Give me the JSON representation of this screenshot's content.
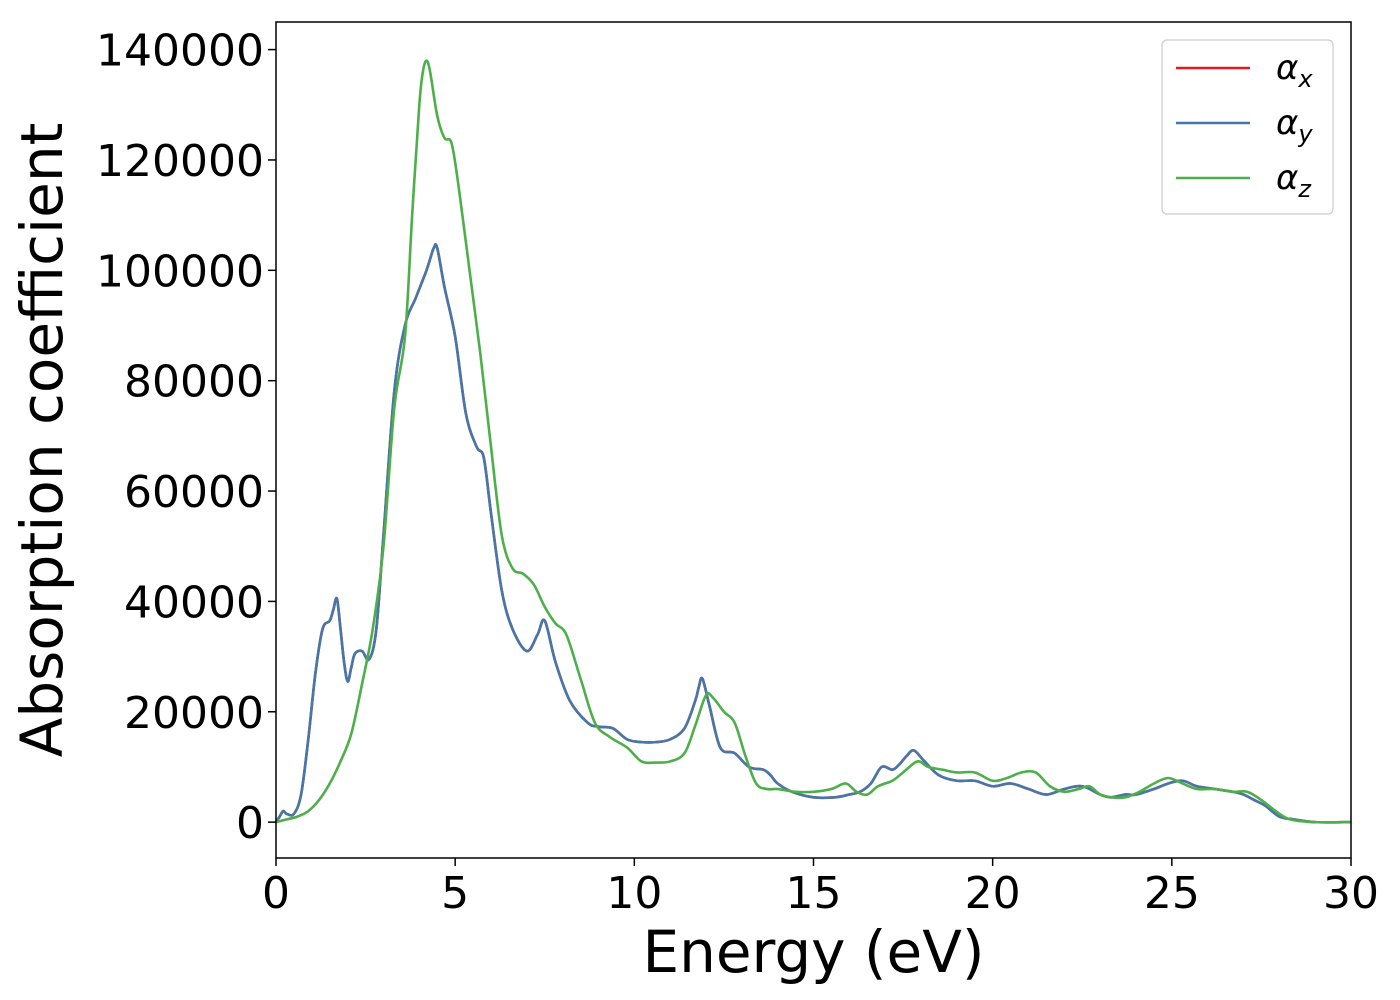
{
  "chart_data": {
    "type": "line",
    "xlabel": "Energy (eV)",
    "ylabel": "Absorption coefficient",
    "xlim": [
      0,
      30
    ],
    "ylim": [
      -6500,
      145000
    ],
    "xticks": [
      0,
      5,
      10,
      15,
      20,
      25,
      30
    ],
    "yticks": [
      0,
      20000,
      40000,
      60000,
      80000,
      100000,
      120000,
      140000
    ],
    "grid": false,
    "legend": "top-right",
    "series": [
      {
        "name": "α",
        "sub": "x",
        "color": "#e41a1c",
        "x": [
          0,
          0.1,
          0.2,
          0.3,
          0.5,
          0.7,
          0.9,
          1.1,
          1.3,
          1.5,
          1.6,
          1.7,
          1.8,
          1.9,
          2.0,
          2.1,
          2.2,
          2.4,
          2.6,
          2.8,
          3.0,
          3.3,
          3.6,
          3.9,
          4.2,
          4.4,
          4.5,
          4.7,
          5.0,
          5.3,
          5.6,
          5.8,
          6.0,
          6.3,
          6.6,
          7.0,
          7.3,
          7.5,
          7.8,
          8.2,
          8.7,
          9.0,
          9.4,
          9.8,
          10.2,
          10.6,
          11.0,
          11.4,
          11.7,
          11.8,
          11.9,
          12.1,
          12.4,
          12.8,
          13.2,
          13.6,
          13.8,
          14.0,
          14.4,
          15.0,
          15.6,
          16.0,
          16.3,
          16.6,
          16.9,
          17.2,
          17.4,
          17.6,
          17.8,
          18.1,
          18.5,
          19.0,
          19.5,
          20.0,
          20.5,
          21.0,
          21.5,
          22.0,
          22.5,
          23.0,
          23.3,
          23.7,
          24.0,
          24.5,
          24.9,
          25.3,
          25.7,
          26.2,
          26.7,
          27.0,
          27.3,
          27.6,
          28.0,
          28.4,
          29.0,
          30.0
        ],
        "values": [
          0,
          1000,
          2000,
          1500,
          1500,
          5000,
          15000,
          27000,
          35000,
          36500,
          38500,
          40500,
          35000,
          29000,
          25500,
          28000,
          30500,
          31000,
          29500,
          35000,
          52000,
          78000,
          90000,
          95000,
          100000,
          104000,
          104000,
          97000,
          88000,
          74000,
          68000,
          66000,
          56000,
          42000,
          35000,
          31000,
          34000,
          36500,
          29000,
          22000,
          18000,
          17300,
          17000,
          15000,
          14500,
          14500,
          15000,
          17000,
          22000,
          24500,
          26000,
          21000,
          13500,
          12500,
          10000,
          9500,
          8500,
          7000,
          5500,
          4500,
          4500,
          5000,
          5500,
          7000,
          10000,
          9500,
          10500,
          12000,
          13000,
          11000,
          8500,
          7500,
          7500,
          6500,
          7000,
          6000,
          5000,
          6000,
          6500,
          5000,
          4500,
          5000,
          5000,
          6000,
          7000,
          7500,
          6500,
          6000,
          5500,
          5000,
          4000,
          3000,
          1000,
          500,
          0,
          0
        ]
      },
      {
        "name": "α",
        "sub": "y",
        "color": "#4477aa",
        "x": [
          0,
          0.1,
          0.2,
          0.3,
          0.5,
          0.7,
          0.9,
          1.1,
          1.3,
          1.5,
          1.6,
          1.7,
          1.8,
          1.9,
          2.0,
          2.1,
          2.2,
          2.4,
          2.6,
          2.8,
          3.0,
          3.3,
          3.6,
          3.9,
          4.2,
          4.4,
          4.5,
          4.7,
          5.0,
          5.3,
          5.6,
          5.8,
          6.0,
          6.3,
          6.6,
          7.0,
          7.3,
          7.5,
          7.8,
          8.2,
          8.7,
          9.0,
          9.4,
          9.8,
          10.2,
          10.6,
          11.0,
          11.4,
          11.7,
          11.8,
          11.9,
          12.1,
          12.4,
          12.8,
          13.2,
          13.6,
          13.8,
          14.0,
          14.4,
          15.0,
          15.6,
          16.0,
          16.3,
          16.6,
          16.9,
          17.2,
          17.4,
          17.6,
          17.8,
          18.1,
          18.5,
          19.0,
          19.5,
          20.0,
          20.5,
          21.0,
          21.5,
          22.0,
          22.5,
          23.0,
          23.3,
          23.7,
          24.0,
          24.5,
          24.9,
          25.3,
          25.7,
          26.2,
          26.7,
          27.0,
          27.3,
          27.6,
          28.0,
          28.4,
          29.0,
          30.0
        ],
        "values": [
          0,
          1000,
          2000,
          1500,
          1500,
          5000,
          15000,
          27000,
          35000,
          36500,
          38500,
          40500,
          35000,
          29000,
          25500,
          28000,
          30500,
          31000,
          29500,
          35000,
          52000,
          78000,
          90000,
          95000,
          100000,
          104000,
          104000,
          97000,
          88000,
          74000,
          68000,
          66000,
          56000,
          42000,
          35000,
          31000,
          34000,
          36500,
          29000,
          22000,
          18000,
          17300,
          17000,
          15000,
          14500,
          14500,
          15000,
          17000,
          22000,
          24500,
          26000,
          21000,
          13500,
          12500,
          10000,
          9500,
          8500,
          7000,
          5500,
          4500,
          4500,
          5000,
          5500,
          7000,
          10000,
          9500,
          10500,
          12000,
          13000,
          11000,
          8500,
          7500,
          7500,
          6500,
          7000,
          6000,
          5000,
          6000,
          6500,
          5000,
          4500,
          5000,
          5000,
          6000,
          7000,
          7500,
          6500,
          6000,
          5500,
          5000,
          4000,
          3000,
          1000,
          500,
          0,
          0
        ]
      },
      {
        "name": "α",
        "sub": "z",
        "color": "#4daf4a",
        "x": [
          0,
          0.3,
          0.6,
          0.9,
          1.2,
          1.5,
          1.8,
          2.1,
          2.4,
          2.7,
          3.0,
          3.3,
          3.6,
          3.8,
          4.0,
          4.1,
          4.2,
          4.3,
          4.5,
          4.7,
          4.9,
          5.1,
          5.4,
          5.7,
          6.0,
          6.3,
          6.6,
          6.9,
          7.2,
          7.5,
          7.8,
          8.1,
          8.5,
          8.9,
          9.3,
          9.8,
          10.2,
          10.6,
          11.0,
          11.4,
          11.7,
          12.0,
          12.2,
          12.5,
          12.8,
          13.1,
          13.4,
          13.7,
          14.0,
          14.5,
          15.0,
          15.5,
          15.9,
          16.2,
          16.5,
          16.8,
          17.2,
          17.5,
          17.9,
          18.2,
          18.6,
          19.0,
          19.5,
          20.0,
          20.4,
          20.8,
          21.2,
          21.6,
          22.0,
          22.4,
          22.7,
          23.0,
          23.3,
          23.7,
          24.1,
          24.5,
          24.9,
          25.3,
          25.7,
          26.2,
          26.7,
          27.1,
          27.5,
          27.9,
          28.3,
          29.0,
          30.0
        ],
        "values": [
          0,
          500,
          1000,
          2000,
          4000,
          7000,
          11000,
          16000,
          25000,
          35000,
          50000,
          75000,
          88000,
          110000,
          130000,
          136000,
          138000,
          136000,
          128000,
          124000,
          123000,
          115000,
          100000,
          85000,
          68000,
          52000,
          46000,
          45000,
          43000,
          39000,
          36000,
          34000,
          26000,
          18000,
          15500,
          13500,
          11000,
          10800,
          11000,
          12500,
          17500,
          23000,
          22500,
          20000,
          18000,
          12000,
          7000,
          6000,
          6000,
          5500,
          5500,
          6000,
          7000,
          5500,
          5000,
          6500,
          7500,
          9000,
          11000,
          10000,
          9500,
          9000,
          9000,
          7500,
          8000,
          9000,
          9000,
          6500,
          5500,
          6000,
          6500,
          5000,
          4500,
          4500,
          5500,
          7000,
          8000,
          7000,
          6000,
          6000,
          5500,
          5500,
          4000,
          2000,
          500,
          0,
          0
        ]
      }
    ]
  }
}
